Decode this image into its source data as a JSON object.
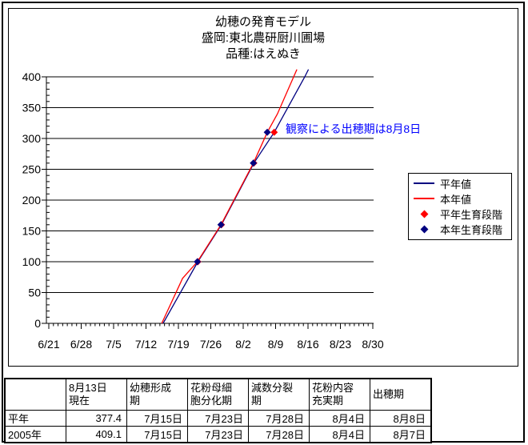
{
  "chart_data": {
    "type": "line",
    "title": "幼穂の発育モデル",
    "subtitle_1": "盛岡:東北農研厨川圃場",
    "subtitle_2": "品種:はえぬき",
    "x_tick_labels": [
      "6/21",
      "6/28",
      "7/5",
      "7/12",
      "7/19",
      "7/26",
      "8/2",
      "8/9",
      "8/16",
      "8/23",
      "8/30"
    ],
    "x_axis": {
      "start_day": 0,
      "end_day": 70,
      "major_step_days": 7,
      "minor_step_days": 1
    },
    "y_axis": {
      "min": 0,
      "max": 400,
      "major_step": 50,
      "minor_step": 10,
      "tick_labels": [
        "0",
        "50",
        "100",
        "150",
        "200",
        "250",
        "300",
        "350",
        "400"
      ]
    },
    "grid": "horizontal-major-only",
    "axis_color": "#000000",
    "series": [
      {
        "name": "平年値",
        "color": "#000080",
        "points": [
          [
            24.7,
            0
          ],
          [
            32.2,
            100
          ],
          [
            37.3,
            160
          ],
          [
            44.3,
            260
          ],
          [
            48.7,
            310
          ],
          [
            55.3,
            400
          ],
          [
            56.1,
            412
          ]
        ]
      },
      {
        "name": "本年値",
        "color": "#ff0000",
        "points": [
          [
            24.4,
            0
          ],
          [
            28.9,
            73
          ],
          [
            32.1,
            100
          ],
          [
            37.2,
            160
          ],
          [
            44.2,
            260
          ],
          [
            47.2,
            310
          ],
          [
            49.4,
            340
          ],
          [
            52.9,
            400
          ],
          [
            53.6,
            412
          ]
        ]
      }
    ],
    "markers": [
      {
        "name": "平年生育段階",
        "color": "#ff0000",
        "points": [
          [
            32.2,
            100
          ],
          [
            37.3,
            160
          ],
          [
            44.3,
            260
          ],
          [
            48.7,
            310
          ]
        ]
      },
      {
        "name": "本年生育段階",
        "color": "#000080",
        "points": [
          [
            32.1,
            100
          ],
          [
            37.2,
            160
          ],
          [
            44.2,
            260
          ],
          [
            47.2,
            310
          ]
        ]
      }
    ],
    "legend": [
      {
        "label": "平年値",
        "swatch": "line",
        "color": "#000080"
      },
      {
        "label": "本年値",
        "swatch": "line",
        "color": "#ff0000"
      },
      {
        "label": "平年生育段階",
        "swatch": "diamond",
        "color": "#ff0000"
      },
      {
        "label": "本年生育段階",
        "swatch": "diamond",
        "color": "#000080"
      }
    ],
    "annotation": {
      "text": "観察による出穂期は8月8日",
      "color": "#0000ff"
    },
    "legend_position": "right-middle"
  },
  "table": {
    "headers": [
      "",
      "8月13日\n現在",
      "幼穂形成\n期",
      "花粉母細\n胞分化期",
      "減数分裂\n期",
      "花粉内容\n充実期",
      "出穂期"
    ],
    "rows": [
      {
        "label": "平年",
        "cells": [
          "377.4",
          "7月15日",
          "7月23日",
          "7月28日",
          "8月4日",
          "8月8日"
        ]
      },
      {
        "label": "2005年",
        "cells": [
          "409.1",
          "7月15日",
          "7月23日",
          "7月28日",
          "8月4日",
          "8月7日"
        ]
      }
    ]
  }
}
